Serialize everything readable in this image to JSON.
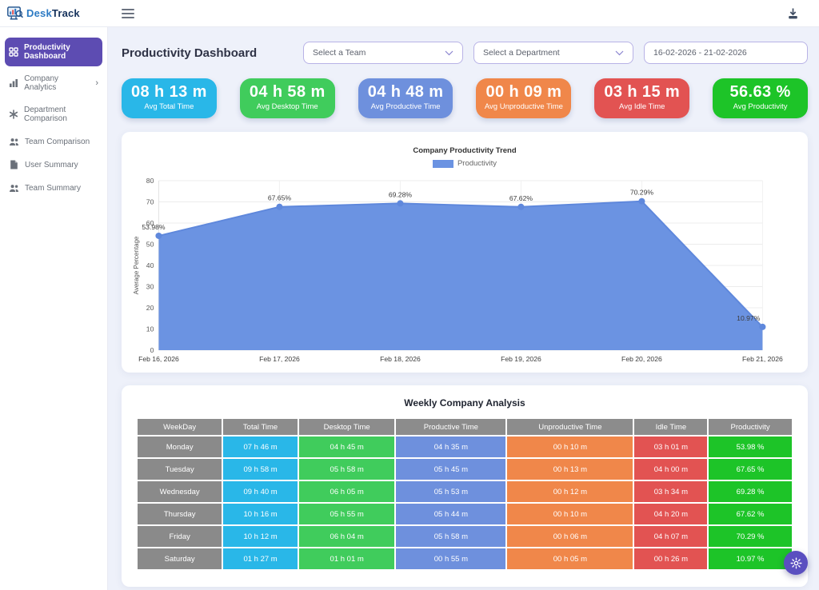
{
  "topbar": {
    "logo_desk": "Desk",
    "logo_track": "Track"
  },
  "sidebar": {
    "items": [
      {
        "label": "Productivity Dashboard",
        "icon": "grid-icon",
        "active": true,
        "has_submenu": false
      },
      {
        "label": "Company Analytics",
        "icon": "bar-chart-icon",
        "active": false,
        "has_submenu": true
      },
      {
        "label": "Department Comparison",
        "icon": "asterisk-icon",
        "active": false,
        "has_submenu": false
      },
      {
        "label": "Team Comparison",
        "icon": "users-icon",
        "active": false,
        "has_submenu": false
      },
      {
        "label": "User Summary",
        "icon": "document-icon",
        "active": false,
        "has_submenu": false
      },
      {
        "label": "Team Summary",
        "icon": "users-icon",
        "active": false,
        "has_submenu": false
      }
    ],
    "active_color": "#5d4cb2"
  },
  "header": {
    "title": "Productivity Dashboard",
    "team_select": "Select a Team",
    "department_select": "Select a Department",
    "date_range": "16-02-2026 - 21-02-2026"
  },
  "stats": [
    {
      "value": "08 h 13 m",
      "label": "Avg Total Time",
      "color": "#29b7e8"
    },
    {
      "value": "04 h 58 m",
      "label": "Avg Desktop Time",
      "color": "#40cc5c"
    },
    {
      "value": "04 h 48 m",
      "label": "Avg Productive Time",
      "color": "#6e90dd"
    },
    {
      "value": "00 h 09 m",
      "label": "Avg Unproductive Time",
      "color": "#f0874a"
    },
    {
      "value": "03 h 15 m",
      "label": "Avg Idle Time",
      "color": "#e25352"
    },
    {
      "value": "56.63 %",
      "label": "Avg Productivity",
      "color": "#1dc428"
    }
  ],
  "chart_data": {
    "type": "area",
    "title": "Company Productivity Trend",
    "legend": [
      "Productivity"
    ],
    "legend_position": "top",
    "x": [
      "Feb 16, 2026",
      "Feb 17, 2026",
      "Feb 18, 2026",
      "Feb 19, 2026",
      "Feb 20, 2026",
      "Feb 21, 2026"
    ],
    "values": [
      53.98,
      67.65,
      69.28,
      67.62,
      70.29,
      10.97
    ],
    "point_labels": [
      "53.98%",
      "67.65%",
      "69.28%",
      "67.62%",
      "70.29%",
      "10.97%"
    ],
    "xlabel": "",
    "ylabel": "Average Percentage",
    "ylim": [
      0,
      80
    ],
    "ytick_step": 10,
    "grid": true,
    "series_color": "#6b93e2",
    "line_color": "#5f88dc"
  },
  "table": {
    "title": "Weekly Company Analysis",
    "columns": [
      "WeekDay",
      "Total Time",
      "Desktop Time",
      "Productive Time",
      "Unproductive Time",
      "Idle Time",
      "Productivity"
    ],
    "header_color": "#8c8c8c",
    "column_colors": [
      "#8a8a8a",
      "#29b7e8",
      "#40cc5c",
      "#6e90dd",
      "#f0874a",
      "#e25352",
      "#1dc428"
    ],
    "rows": [
      [
        "Monday",
        "07 h 46 m",
        "04 h 45 m",
        "04 h 35 m",
        "00 h 10 m",
        "03 h 01 m",
        "53.98 %"
      ],
      [
        "Tuesday",
        "09 h 58 m",
        "05 h 58 m",
        "05 h 45 m",
        "00 h 13 m",
        "04 h 00 m",
        "67.65 %"
      ],
      [
        "Wednesday",
        "09 h 40 m",
        "06 h 05 m",
        "05 h 53 m",
        "00 h 12 m",
        "03 h 34 m",
        "69.28 %"
      ],
      [
        "Thursday",
        "10 h 16 m",
        "05 h 55 m",
        "05 h 44 m",
        "00 h 10 m",
        "04 h 20 m",
        "67.62 %"
      ],
      [
        "Friday",
        "10 h 12 m",
        "06 h 04 m",
        "05 h 58 m",
        "00 h 06 m",
        "04 h 07 m",
        "70.29 %"
      ],
      [
        "Saturday",
        "01 h 27 m",
        "01 h 01 m",
        "00 h 55 m",
        "00 h 05 m",
        "00 h 26 m",
        "10.97 %"
      ]
    ]
  },
  "fab": {
    "icon": "gear-icon"
  }
}
